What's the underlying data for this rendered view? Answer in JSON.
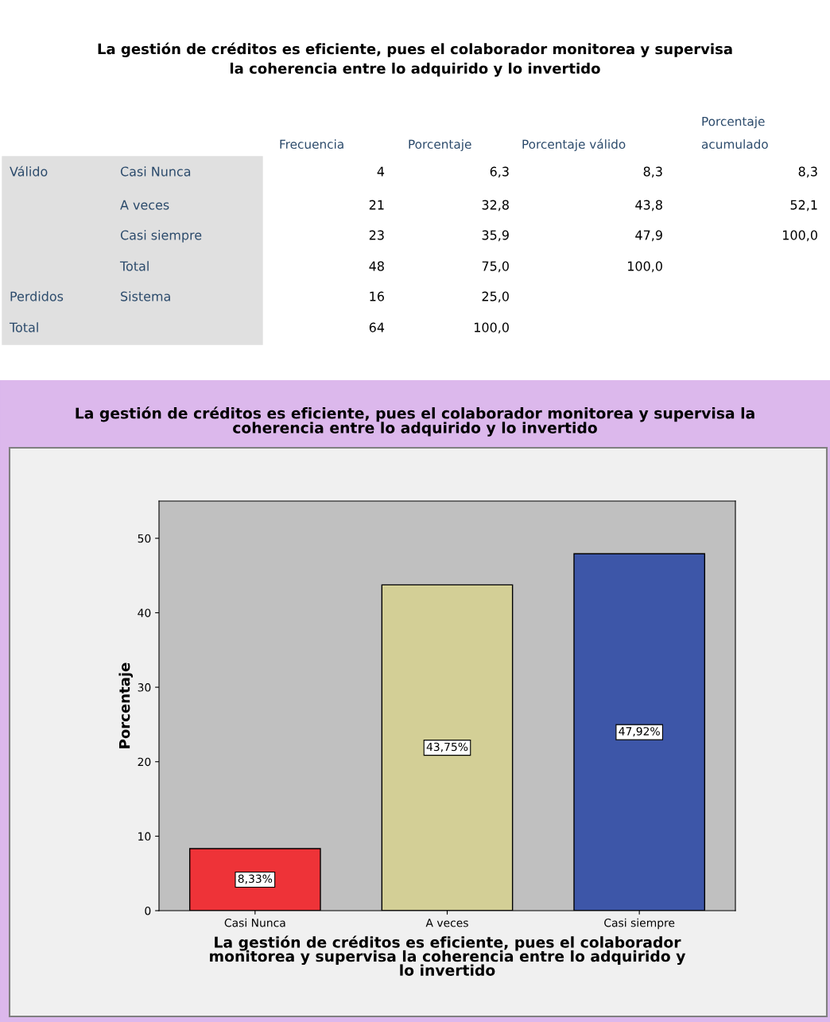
{
  "chart_data": [
    {
      "type": "other",
      "title": "La gestión de créditos es eficiente, pues el colaborador monitorea y supervisa\nla coherencia entre lo adquirido y lo invertido",
      "categories": [
        "Frecuencia",
        "Porcentaje",
        "Porcentaje válido",
        "Porcentaje\nacumulado"
      ],
      "y2_categories": [
        "Válido",
        null,
        null,
        null,
        "Perdidos",
        "Total"
      ],
      "y_categories": [
        "Casi Nunca",
        "A veces",
        "Casi siempre",
        "Total",
        "Sistema",
        null
      ],
      "cell_labels": [
        [
          "4",
          "6,3",
          "8,3",
          "8,3"
        ],
        [
          "21",
          "32,8",
          "43,8",
          "52,1"
        ],
        [
          "23",
          "35,9",
          "47,9",
          "100,0"
        ],
        [
          "48",
          "75,0",
          "100,0",
          null
        ],
        [
          "16",
          "25,0",
          null,
          null
        ],
        [
          "64",
          "100,0",
          null,
          null
        ]
      ]
    },
    {
      "type": "bar",
      "title": "La gestión de créditos es eficiente, pues el colaborador monitorea y supervisa la\ncoherencia entre lo adquirido y lo invertido",
      "xlabel": "La gestión de créditos es eficiente, pues el colaborador\nmonitorea y supervisa la coherencia entre lo adquirido y\nlo invertido",
      "ylabel": "Porcentaje",
      "categories": [
        "Casi Nunca",
        "A veces",
        "Casi siempre"
      ],
      "values": [
        8.33,
        43.75,
        47.92
      ],
      "colors": [
        "#ee3338",
        "#d3cf96",
        "#3d56a8"
      ],
      "value_labels": [
        "8,33%",
        "43,75%",
        "47,92%"
      ],
      "ylim": [
        0,
        55
      ],
      "yticks": [
        0,
        10,
        20,
        30,
        40,
        50
      ],
      "grid": false,
      "legend": false
    }
  ]
}
